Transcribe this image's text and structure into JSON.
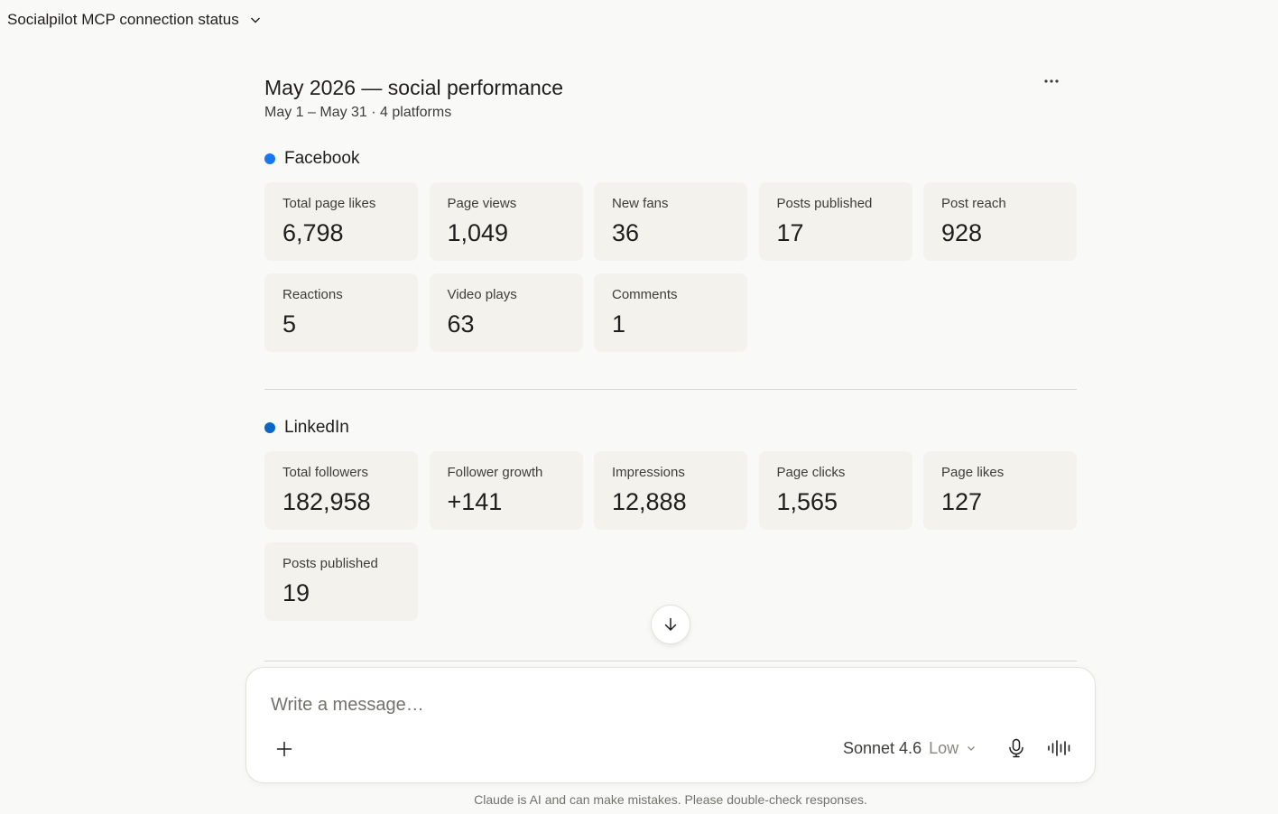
{
  "header": {
    "conversation_title": "Socialpilot MCP connection status"
  },
  "report": {
    "title": "May 2026 — social performance",
    "subtitle": "May 1 – May 31 · 4 platforms",
    "platforms": [
      {
        "name": "Facebook",
        "color": "#1877f2",
        "metrics": [
          {
            "label": "Total page likes",
            "value": "6,798"
          },
          {
            "label": "Page views",
            "value": "1,049"
          },
          {
            "label": "New fans",
            "value": "36"
          },
          {
            "label": "Posts published",
            "value": "17"
          },
          {
            "label": "Post reach",
            "value": "928"
          },
          {
            "label": "Reactions",
            "value": "5"
          },
          {
            "label": "Video plays",
            "value": "63"
          },
          {
            "label": "Comments",
            "value": "1"
          }
        ]
      },
      {
        "name": "LinkedIn",
        "color": "#0a66c2",
        "metrics": [
          {
            "label": "Total followers",
            "value": "182,958"
          },
          {
            "label": "Follower growth",
            "value": "+141"
          },
          {
            "label": "Impressions",
            "value": "12,888"
          },
          {
            "label": "Page clicks",
            "value": "1,565"
          },
          {
            "label": "Page likes",
            "value": "127"
          },
          {
            "label": "Posts published",
            "value": "19"
          }
        ]
      }
    ]
  },
  "composer": {
    "placeholder": "Write a message…",
    "model": "Sonnet 4.6",
    "effort": "Low"
  },
  "footer": {
    "disclaimer": "Claude is AI and can make mistakes. Please double-check responses."
  },
  "icons": [
    "chevron-down-icon",
    "more-icon",
    "arrow-down-icon",
    "plus-icon",
    "microphone-icon",
    "voice-waveform-icon"
  ]
}
